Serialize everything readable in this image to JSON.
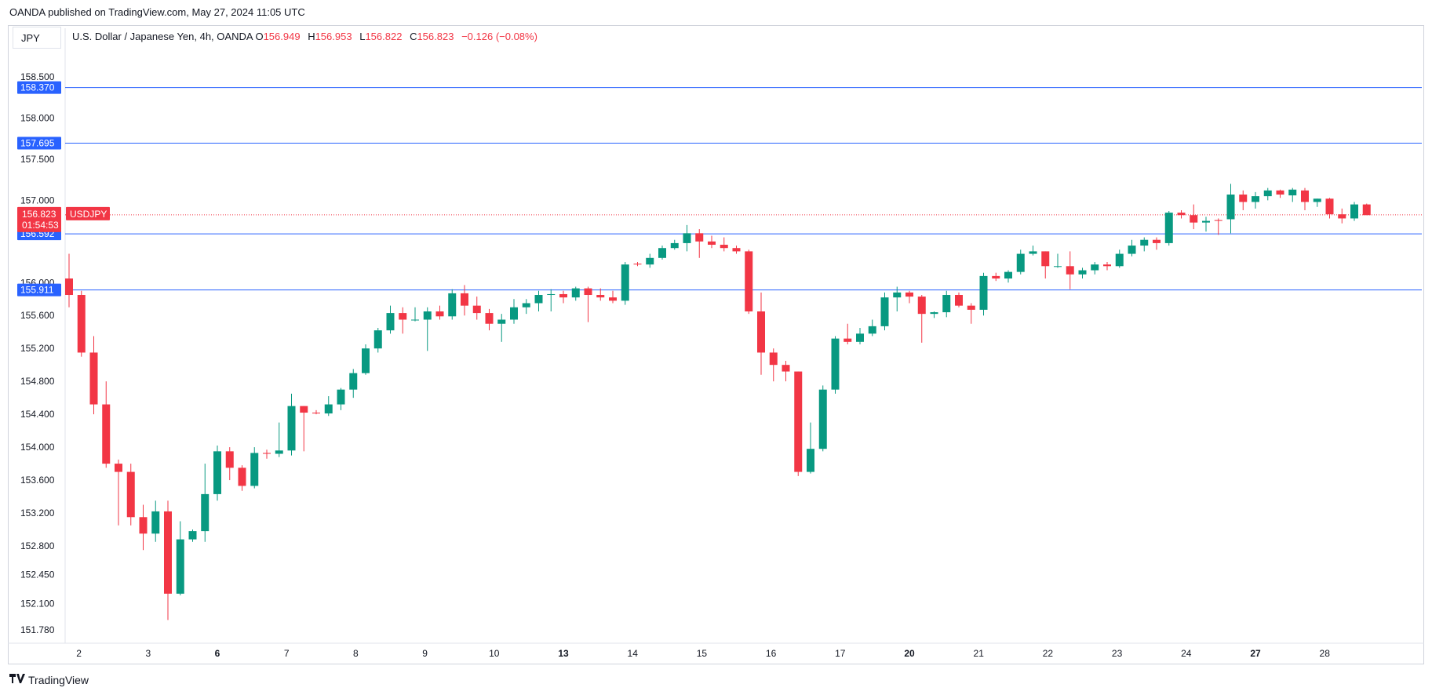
{
  "header": {
    "attribution": "OANDA published on TradingView.com, May 27, 2024 11:05 UTC"
  },
  "symbol_box": {
    "label": "JPY"
  },
  "legend": {
    "name": "U.S. Dollar / Japanese Yen, 4h, OANDA",
    "o_label": "O",
    "o_value": "156.949",
    "h_label": "H",
    "h_value": "156.953",
    "l_label": "L",
    "l_value": "156.822",
    "c_label": "C",
    "c_value": "156.823",
    "change": "−0.126 (−0.08%)"
  },
  "footer": {
    "logo_icon": "tradingview-logo-icon",
    "brand": "TradingView"
  },
  "colors": {
    "up": "#089981",
    "down": "#f23645",
    "level_line": "#2962ff",
    "price_tag": "#f23645",
    "grid_text": "#131722"
  },
  "chart_data": {
    "type": "candlestick",
    "symbol": "USDJPY",
    "interval": "4h",
    "y_ticks": [
      "158.500",
      "158.000",
      "157.500",
      "157.000",
      "156.000",
      "155.600",
      "155.200",
      "154.800",
      "154.400",
      "154.000",
      "153.600",
      "153.200",
      "152.800",
      "152.450",
      "152.100",
      "151.780"
    ],
    "x_ticks": [
      {
        "label": "2",
        "pos": 0.8,
        "bold": false
      },
      {
        "label": "3",
        "pos": 6.4,
        "bold": false
      },
      {
        "label": "6",
        "pos": 12.0,
        "bold": true
      },
      {
        "label": "7",
        "pos": 17.6,
        "bold": false
      },
      {
        "label": "8",
        "pos": 23.2,
        "bold": false
      },
      {
        "label": "9",
        "pos": 28.8,
        "bold": false
      },
      {
        "label": "10",
        "pos": 34.4,
        "bold": false
      },
      {
        "label": "13",
        "pos": 40.0,
        "bold": true
      },
      {
        "label": "14",
        "pos": 45.6,
        "bold": false
      },
      {
        "label": "15",
        "pos": 51.2,
        "bold": false
      },
      {
        "label": "16",
        "pos": 56.8,
        "bold": false
      },
      {
        "label": "17",
        "pos": 62.4,
        "bold": false
      },
      {
        "label": "20",
        "pos": 68.0,
        "bold": true
      },
      {
        "label": "21",
        "pos": 73.6,
        "bold": false
      },
      {
        "label": "22",
        "pos": 79.2,
        "bold": false
      },
      {
        "label": "23",
        "pos": 84.8,
        "bold": false
      },
      {
        "label": "24",
        "pos": 90.4,
        "bold": false
      },
      {
        "label": "27",
        "pos": 96.0,
        "bold": true
      },
      {
        "label": "28",
        "pos": 101.6,
        "bold": false
      }
    ],
    "horizontal_levels": [
      {
        "value": 158.37,
        "label": "158.370"
      },
      {
        "value": 157.695,
        "label": "157.695"
      },
      {
        "value": 156.592,
        "label": "156.592"
      },
      {
        "value": 155.911,
        "label": "155.911"
      }
    ],
    "last_price": {
      "value": 156.823,
      "label": "156.823",
      "countdown": "01:54:53",
      "symbol_tag": "USDJPY"
    },
    "candles": [
      [
        156.05,
        156.35,
        155.7,
        155.85
      ],
      [
        155.85,
        155.9,
        155.1,
        155.15
      ],
      [
        155.15,
        155.35,
        154.4,
        154.52
      ],
      [
        154.52,
        154.8,
        153.75,
        153.8
      ],
      [
        153.8,
        153.85,
        153.05,
        153.7
      ],
      [
        153.7,
        153.8,
        153.05,
        153.15
      ],
      [
        153.15,
        153.3,
        152.75,
        152.95
      ],
      [
        152.95,
        153.35,
        152.85,
        153.22
      ],
      [
        153.22,
        153.35,
        151.9,
        152.22
      ],
      [
        152.22,
        153.1,
        152.2,
        152.88
      ],
      [
        152.88,
        153.0,
        152.85,
        152.98
      ],
      [
        152.98,
        153.8,
        152.85,
        153.43
      ],
      [
        153.43,
        154.02,
        153.35,
        153.95
      ],
      [
        153.95,
        154.0,
        153.6,
        153.75
      ],
      [
        153.75,
        153.78,
        153.47,
        153.53
      ],
      [
        153.53,
        154.0,
        153.5,
        153.93
      ],
      [
        153.93,
        153.97,
        153.86,
        153.92
      ],
      [
        153.92,
        154.3,
        153.88,
        153.96
      ],
      [
        153.96,
        154.65,
        153.9,
        154.5
      ],
      [
        154.5,
        154.5,
        153.95,
        154.42
      ],
      [
        154.42,
        154.45,
        154.4,
        154.41
      ],
      [
        154.41,
        154.62,
        154.38,
        154.52
      ],
      [
        154.52,
        154.72,
        154.45,
        154.7
      ],
      [
        154.7,
        154.95,
        154.6,
        154.9
      ],
      [
        154.9,
        155.25,
        154.88,
        155.2
      ],
      [
        155.2,
        155.45,
        155.15,
        155.42
      ],
      [
        155.42,
        155.72,
        155.38,
        155.63
      ],
      [
        155.63,
        155.7,
        155.38,
        155.55
      ],
      [
        155.55,
        155.7,
        155.53,
        155.55
      ],
      [
        155.55,
        155.7,
        155.17,
        155.65
      ],
      [
        155.65,
        155.72,
        155.55,
        155.59
      ],
      [
        155.59,
        155.92,
        155.55,
        155.87
      ],
      [
        155.87,
        155.97,
        155.6,
        155.72
      ],
      [
        155.72,
        155.83,
        155.55,
        155.63
      ],
      [
        155.63,
        155.68,
        155.42,
        155.5
      ],
      [
        155.5,
        155.62,
        155.28,
        155.55
      ],
      [
        155.55,
        155.8,
        155.5,
        155.7
      ],
      [
        155.7,
        155.8,
        155.62,
        155.75
      ],
      [
        155.75,
        155.9,
        155.65,
        155.85
      ],
      [
        155.85,
        155.92,
        155.65,
        155.86
      ],
      [
        155.86,
        155.9,
        155.75,
        155.82
      ],
      [
        155.82,
        155.95,
        155.78,
        155.93
      ],
      [
        155.93,
        155.95,
        155.52,
        155.85
      ],
      [
        155.85,
        155.93,
        155.78,
        155.82
      ],
      [
        155.82,
        155.9,
        155.75,
        155.78
      ],
      [
        155.78,
        156.25,
        155.73,
        156.22
      ],
      [
        156.23,
        156.25,
        156.2,
        156.22
      ],
      [
        156.22,
        156.35,
        156.18,
        156.3
      ],
      [
        156.3,
        156.45,
        156.28,
        156.42
      ],
      [
        156.42,
        156.52,
        156.4,
        156.48
      ],
      [
        156.48,
        156.7,
        156.38,
        156.6
      ],
      [
        156.6,
        156.65,
        156.3,
        156.5
      ],
      [
        156.5,
        156.57,
        156.42,
        156.46
      ],
      [
        156.46,
        156.55,
        156.38,
        156.42
      ],
      [
        156.42,
        156.45,
        156.35,
        156.38
      ],
      [
        156.38,
        156.4,
        155.62,
        155.65
      ],
      [
        155.65,
        155.88,
        154.88,
        155.15
      ],
      [
        155.15,
        155.2,
        154.8,
        155.0
      ],
      [
        155.0,
        155.05,
        154.8,
        154.92
      ],
      [
        154.92,
        154.92,
        153.65,
        153.7
      ],
      [
        153.7,
        154.3,
        153.68,
        153.98
      ],
      [
        153.98,
        154.75,
        153.95,
        154.7
      ],
      [
        154.7,
        155.35,
        154.65,
        155.32
      ],
      [
        155.32,
        155.5,
        155.25,
        155.28
      ],
      [
        155.28,
        155.45,
        155.25,
        155.38
      ],
      [
        155.38,
        155.55,
        155.35,
        155.47
      ],
      [
        155.47,
        155.88,
        155.42,
        155.82
      ],
      [
        155.82,
        155.95,
        155.65,
        155.88
      ],
      [
        155.88,
        155.9,
        155.75,
        155.83
      ],
      [
        155.83,
        155.85,
        155.27,
        155.62
      ],
      [
        155.62,
        155.65,
        155.57,
        155.64
      ],
      [
        155.64,
        155.9,
        155.58,
        155.85
      ],
      [
        155.85,
        155.88,
        155.7,
        155.72
      ],
      [
        155.72,
        155.75,
        155.5,
        155.67
      ],
      [
        155.67,
        156.12,
        155.6,
        156.08
      ],
      [
        156.08,
        156.12,
        156.02,
        156.05
      ],
      [
        156.05,
        156.15,
        156.0,
        156.13
      ],
      [
        156.13,
        156.4,
        156.1,
        156.35
      ],
      [
        156.35,
        156.45,
        156.33,
        156.38
      ],
      [
        156.38,
        156.38,
        156.05,
        156.2
      ],
      [
        156.2,
        156.35,
        156.18,
        156.2
      ],
      [
        156.2,
        156.38,
        155.92,
        156.1
      ],
      [
        156.1,
        156.18,
        156.05,
        156.15
      ],
      [
        156.15,
        156.25,
        156.1,
        156.22
      ],
      [
        156.22,
        156.25,
        156.15,
        156.2
      ],
      [
        156.2,
        156.4,
        156.18,
        156.35
      ],
      [
        156.35,
        156.52,
        156.32,
        156.45
      ],
      [
        156.45,
        156.55,
        156.38,
        156.52
      ],
      [
        156.52,
        156.55,
        156.4,
        156.48
      ],
      [
        156.48,
        156.87,
        156.45,
        156.85
      ],
      [
        156.85,
        156.88,
        156.78,
        156.82
      ],
      [
        156.82,
        156.95,
        156.65,
        156.73
      ],
      [
        156.73,
        156.8,
        156.62,
        156.75
      ],
      [
        156.76,
        156.78,
        156.58,
        156.75
      ],
      [
        156.77,
        157.2,
        156.6,
        157.07
      ],
      [
        157.07,
        157.12,
        156.88,
        156.98
      ],
      [
        156.98,
        157.1,
        156.9,
        157.05
      ],
      [
        157.05,
        157.15,
        157.0,
        157.12
      ],
      [
        157.12,
        157.13,
        157.03,
        157.07
      ],
      [
        157.06,
        157.15,
        156.98,
        157.13
      ],
      [
        157.12,
        157.15,
        156.88,
        156.98
      ],
      [
        156.98,
        157.02,
        156.92,
        157.02
      ],
      [
        157.02,
        157.03,
        156.78,
        156.83
      ],
      [
        156.83,
        156.9,
        156.72,
        156.78
      ],
      [
        156.78,
        156.98,
        156.75,
        156.95
      ],
      [
        156.95,
        156.96,
        156.82,
        156.82
      ]
    ]
  }
}
